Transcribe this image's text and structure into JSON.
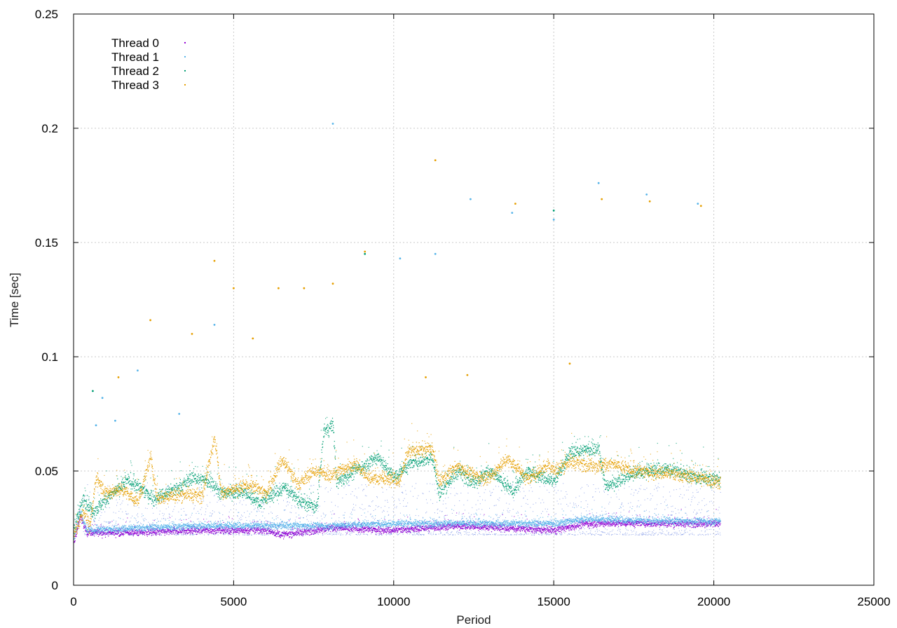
{
  "chart_data": {
    "type": "scatter",
    "title": "",
    "xlabel": "Period",
    "ylabel": "Time [sec]",
    "xlim": [
      0,
      25000
    ],
    "ylim": [
      0,
      0.25
    ],
    "x_ticks": [
      "0",
      "5000",
      "10000",
      "15000",
      "20000",
      "25000"
    ],
    "y_ticks": [
      "0",
      "0.05",
      "0.1",
      "0.15",
      "0.2",
      "0.25"
    ],
    "grid": true,
    "legend_position": "top-left",
    "series": [
      {
        "name": "Thread 0",
        "color": "#9400d3",
        "marker": "dot",
        "x_range": [
          0,
          20200
        ],
        "baseline": [
          [
            0,
            0.018
          ],
          [
            200,
            0.03
          ],
          [
            400,
            0.023
          ],
          [
            2000,
            0.023
          ],
          [
            4000,
            0.024
          ],
          [
            6000,
            0.024
          ],
          [
            6500,
            0.022
          ],
          [
            8000,
            0.025
          ],
          [
            10000,
            0.024
          ],
          [
            12000,
            0.026
          ],
          [
            15000,
            0.024
          ],
          [
            16000,
            0.027
          ],
          [
            18000,
            0.027
          ],
          [
            20200,
            0.027
          ]
        ],
        "spread": 0.0015,
        "outliers": []
      },
      {
        "name": "Thread 1",
        "color": "#56b4e9",
        "marker": "dot",
        "x_range": [
          0,
          20200
        ],
        "baseline": [
          [
            0,
            0.02
          ],
          [
            200,
            0.032
          ],
          [
            400,
            0.024
          ],
          [
            2000,
            0.025
          ],
          [
            4000,
            0.026
          ],
          [
            6000,
            0.026
          ],
          [
            8000,
            0.026
          ],
          [
            10000,
            0.027
          ],
          [
            12000,
            0.027
          ],
          [
            15000,
            0.027
          ],
          [
            16000,
            0.029
          ],
          [
            18000,
            0.028
          ],
          [
            20200,
            0.028
          ]
        ],
        "spread": 0.0015,
        "scatter_band": [
          0.022,
          0.045
        ],
        "outliers": [
          [
            700,
            0.07
          ],
          [
            900,
            0.082
          ],
          [
            1300,
            0.072
          ],
          [
            2000,
            0.094
          ],
          [
            3300,
            0.075
          ],
          [
            4400,
            0.114
          ],
          [
            8100,
            0.202
          ],
          [
            10200,
            0.143
          ],
          [
            11300,
            0.145
          ],
          [
            12400,
            0.169
          ],
          [
            13700,
            0.163
          ],
          [
            15000,
            0.16
          ],
          [
            16400,
            0.176
          ],
          [
            17900,
            0.171
          ],
          [
            19500,
            0.167
          ]
        ]
      },
      {
        "name": "Thread 2",
        "color": "#009e73",
        "marker": "dot",
        "x_range": [
          0,
          20200
        ],
        "baseline": [
          [
            0,
            0.025
          ],
          [
            300,
            0.038
          ],
          [
            600,
            0.032
          ],
          [
            1200,
            0.04
          ],
          [
            1700,
            0.046
          ],
          [
            2500,
            0.038
          ],
          [
            3200,
            0.042
          ],
          [
            3700,
            0.047
          ],
          [
            4300,
            0.045
          ],
          [
            4600,
            0.04
          ],
          [
            5300,
            0.041
          ],
          [
            5800,
            0.036
          ],
          [
            6600,
            0.043
          ],
          [
            7000,
            0.037
          ],
          [
            7600,
            0.034
          ],
          [
            7800,
            0.067
          ],
          [
            8100,
            0.07
          ],
          [
            8200,
            0.045
          ],
          [
            9000,
            0.052
          ],
          [
            9500,
            0.056
          ],
          [
            10000,
            0.047
          ],
          [
            10500,
            0.053
          ],
          [
            11200,
            0.056
          ],
          [
            11400,
            0.04
          ],
          [
            12000,
            0.05
          ],
          [
            12500,
            0.045
          ],
          [
            13000,
            0.05
          ],
          [
            13700,
            0.041
          ],
          [
            14200,
            0.05
          ],
          [
            15000,
            0.045
          ],
          [
            15500,
            0.058
          ],
          [
            16400,
            0.06
          ],
          [
            16600,
            0.043
          ],
          [
            17500,
            0.049
          ],
          [
            18500,
            0.051
          ],
          [
            19500,
            0.047
          ],
          [
            20200,
            0.046
          ]
        ],
        "spread": 0.003,
        "outliers": [
          [
            600,
            0.085
          ],
          [
            9100,
            0.145
          ],
          [
            15000,
            0.164
          ]
        ]
      },
      {
        "name": "Thread 3",
        "color": "#e69f00",
        "marker": "dot",
        "x_range": [
          0,
          20200
        ],
        "baseline": [
          [
            0,
            0.022
          ],
          [
            300,
            0.033
          ],
          [
            500,
            0.025
          ],
          [
            700,
            0.048
          ],
          [
            1000,
            0.04
          ],
          [
            1500,
            0.042
          ],
          [
            2000,
            0.036
          ],
          [
            2400,
            0.056
          ],
          [
            2600,
            0.038
          ],
          [
            3500,
            0.04
          ],
          [
            4000,
            0.039
          ],
          [
            4400,
            0.065
          ],
          [
            4600,
            0.04
          ],
          [
            5500,
            0.044
          ],
          [
            6000,
            0.04
          ],
          [
            6500,
            0.055
          ],
          [
            7000,
            0.044
          ],
          [
            7500,
            0.05
          ],
          [
            8000,
            0.048
          ],
          [
            8800,
            0.053
          ],
          [
            9200,
            0.047
          ],
          [
            10200,
            0.046
          ],
          [
            10400,
            0.058
          ],
          [
            11200,
            0.06
          ],
          [
            11400,
            0.045
          ],
          [
            12000,
            0.052
          ],
          [
            12500,
            0.048
          ],
          [
            13000,
            0.047
          ],
          [
            13500,
            0.055
          ],
          [
            13800,
            0.052
          ],
          [
            14200,
            0.046
          ],
          [
            14800,
            0.053
          ],
          [
            15000,
            0.05
          ],
          [
            15500,
            0.054
          ],
          [
            16400,
            0.052
          ],
          [
            16800,
            0.053
          ],
          [
            17500,
            0.05
          ],
          [
            18500,
            0.049
          ],
          [
            19500,
            0.047
          ],
          [
            20200,
            0.045
          ]
        ],
        "spread": 0.003,
        "outliers": [
          [
            1400,
            0.091
          ],
          [
            2400,
            0.116
          ],
          [
            3700,
            0.11
          ],
          [
            4400,
            0.142
          ],
          [
            5000,
            0.13
          ],
          [
            5600,
            0.108
          ],
          [
            6400,
            0.13
          ],
          [
            7200,
            0.13
          ],
          [
            8100,
            0.132
          ],
          [
            9100,
            0.146
          ],
          [
            11000,
            0.091
          ],
          [
            11300,
            0.186
          ],
          [
            12300,
            0.092
          ],
          [
            13800,
            0.167
          ],
          [
            15500,
            0.097
          ],
          [
            16500,
            0.169
          ],
          [
            18000,
            0.168
          ],
          [
            19600,
            0.166
          ]
        ]
      }
    ]
  }
}
